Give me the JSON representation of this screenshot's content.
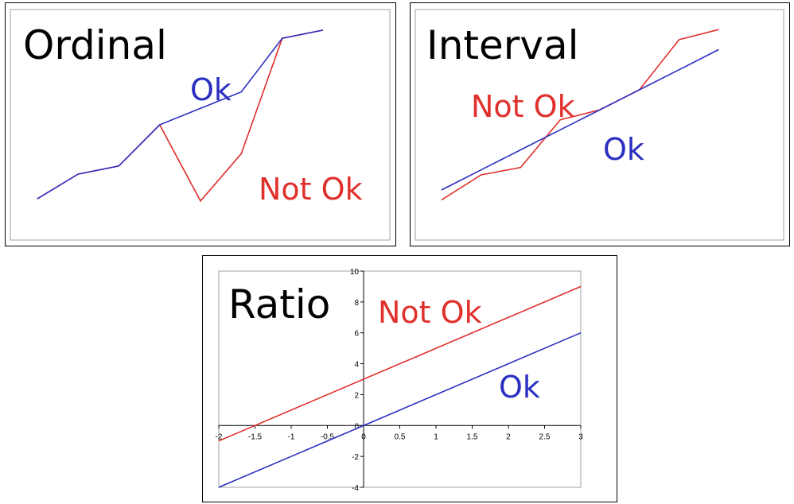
{
  "colors": {
    "ok": "#2b2fc1",
    "not_ok": "#e0302c",
    "frame": "#a0a0a0",
    "axis": "#000000"
  },
  "chart_data": [
    {
      "type": "line",
      "title": "Ordinal",
      "x": [
        1,
        2,
        3,
        4,
        5,
        6,
        7,
        8
      ],
      "series": [
        {
          "name": "Ok",
          "values": [
            1.0,
            1.6,
            1.8,
            2.8,
            3.2,
            3.6,
            4.9,
            5.1
          ]
        },
        {
          "name": "Not Ok",
          "values": [
            1.0,
            1.6,
            1.8,
            2.8,
            0.95,
            2.1,
            4.9,
            5.1
          ]
        }
      ],
      "xlim": [
        0.5,
        9.5
      ],
      "ylim": [
        0,
        5.6
      ]
    },
    {
      "type": "line",
      "title": "Interval",
      "x": [
        1,
        2,
        3,
        4,
        5,
        6,
        7,
        8
      ],
      "series": [
        {
          "name": "Ok",
          "values": [
            1.0,
            1.4,
            1.8,
            2.2,
            2.6,
            3.0,
            3.4,
            3.8
          ]
        },
        {
          "name": "Not Ok",
          "values": [
            0.8,
            1.3,
            1.45,
            2.4,
            2.6,
            3.0,
            4.0,
            4.2
          ]
        }
      ],
      "xlim": [
        0.5,
        9.5
      ],
      "ylim": [
        0,
        4.6
      ]
    },
    {
      "type": "line",
      "title": "Ratio",
      "x": [
        -2,
        3
      ],
      "series": [
        {
          "name": "Not Ok",
          "values": [
            -1,
            9
          ]
        },
        {
          "name": "Ok",
          "values": [
            -4,
            6
          ]
        }
      ],
      "xlim": [
        -2,
        3
      ],
      "ylim": [
        -4,
        10
      ],
      "x_ticks": [
        "-2",
        "-1.5",
        "-1",
        "-0.5",
        "0",
        "0.5",
        "1",
        "1.5",
        "2",
        "2.5",
        "3"
      ],
      "y_ticks": [
        "-4",
        "-2",
        "0",
        "2",
        "4",
        "6",
        "8",
        "10"
      ]
    }
  ]
}
